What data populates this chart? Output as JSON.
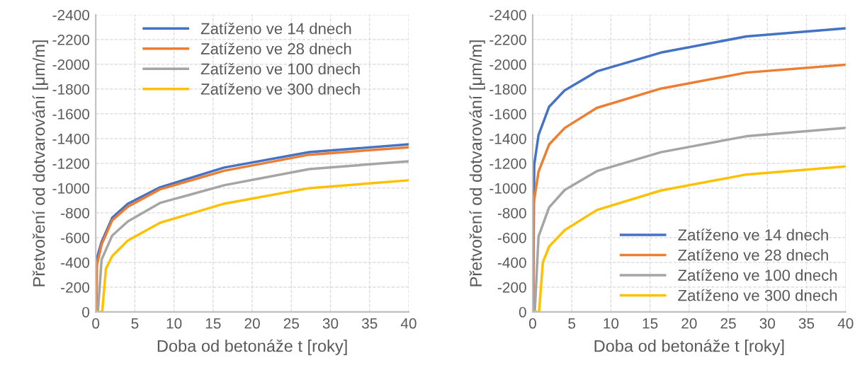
{
  "chart_data": [
    {
      "type": "line",
      "xlabel": "Doba od betonáže t [roky]",
      "ylabel": "Přetvoření od dotvarování [μm/m]",
      "xlim": [
        0,
        40
      ],
      "xticks": [
        0,
        5,
        10,
        15,
        20,
        25,
        30,
        35,
        40
      ],
      "ylim": [
        0,
        -2400
      ],
      "yticks": [
        0,
        -200,
        -400,
        -600,
        -800,
        -1000,
        -1200,
        -1400,
        -1600,
        -1800,
        -2000,
        -2200,
        -2400
      ],
      "grid": true,
      "legend": "top",
      "marker": "none",
      "line_style": "solid",
      "series": [
        {
          "name": "Zatíženo ve 14 dnech",
          "color": "#4472c4",
          "x": [
            0.04,
            0.08,
            0.75,
            2.1,
            4.1,
            8.2,
            16.4,
            27.3,
            40
          ],
          "values": [
            0,
            -420,
            -566,
            -760,
            -874,
            -1006,
            -1166,
            -1291,
            -1354
          ]
        },
        {
          "name": "Zatíženo ve 28 dnech",
          "color": "#ed7d31",
          "x": [
            0.08,
            0.15,
            0.75,
            2.1,
            4.1,
            8.2,
            16.4,
            27.3,
            40
          ],
          "values": [
            0,
            -380,
            -545,
            -740,
            -850,
            -990,
            -1140,
            -1270,
            -1330
          ]
        },
        {
          "name": "Zatíženo ve 100 dnech",
          "color": "#a5a5a5",
          "x": [
            0.27,
            0.75,
            2.1,
            4.1,
            8.2,
            16.4,
            27.3,
            40
          ],
          "values": [
            0,
            -423,
            -617,
            -731,
            -880,
            -1023,
            -1154,
            -1217
          ]
        },
        {
          "name": "Zatíženo ve 300 dnech",
          "color": "#ffc000",
          "x": [
            0,
            0.82,
            1.3,
            2.1,
            4.1,
            8.2,
            16.4,
            27.3,
            40
          ],
          "values": [
            0,
            0,
            -349,
            -451,
            -577,
            -720,
            -874,
            -1000,
            -1063
          ]
        }
      ]
    },
    {
      "type": "line",
      "xlabel": "Doba od betonáže t [roky]",
      "ylabel": "Přetvoření od dotvarování [μm/m]",
      "xlim": [
        0,
        40
      ],
      "xticks": [
        0,
        5,
        10,
        15,
        20,
        25,
        30,
        35,
        40
      ],
      "ylim": [
        0,
        -2400
      ],
      "yticks": [
        0,
        -200,
        -400,
        -600,
        -800,
        -1000,
        -1200,
        -1400,
        -1600,
        -1800,
        -2000,
        -2200,
        -2400
      ],
      "grid": true,
      "legend": "bottom right",
      "marker": "none",
      "line_style": "solid",
      "series": [
        {
          "name": "Zatíženo ve 14 dnech",
          "color": "#4472c4",
          "x": [
            0.04,
            0.2,
            0.75,
            2.1,
            4.1,
            8.2,
            16.4,
            27.3,
            40
          ],
          "values": [
            0,
            -1190,
            -1429,
            -1657,
            -1790,
            -1943,
            -2095,
            -2225,
            -2291
          ]
        },
        {
          "name": "Zatíženo ve 28 dnech",
          "color": "#ed7d31",
          "x": [
            0.077,
            0.1,
            0.75,
            2.1,
            4.1,
            8.2,
            16.4,
            27.3,
            40
          ],
          "values": [
            0,
            -867,
            -1133,
            -1352,
            -1486,
            -1648,
            -1804,
            -1933,
            -1996
          ]
        },
        {
          "name": "Zatíženo ve 100 dnech",
          "color": "#a5a5a5",
          "x": [
            0.27,
            0.75,
            2.1,
            4.1,
            8.2,
            16.4,
            27.3,
            40
          ],
          "values": [
            0,
            -610,
            -844,
            -985,
            -1137,
            -1290,
            -1419,
            -1486
          ]
        },
        {
          "name": "Zatíženo ve 300 dnech",
          "color": "#ffc000",
          "x": [
            0,
            0.82,
            1.3,
            2.1,
            4.1,
            8.2,
            16.4,
            27.3,
            40
          ],
          "values": [
            0,
            0,
            -400,
            -528,
            -661,
            -823,
            -981,
            -1110,
            -1175
          ]
        }
      ]
    }
  ]
}
